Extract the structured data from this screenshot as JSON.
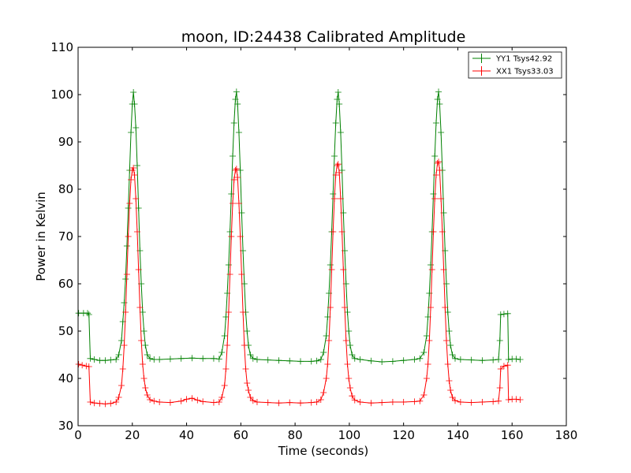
{
  "chart_data": {
    "type": "line",
    "title": "moon, ID:24438 Calibrated Amplitude",
    "xlabel": "Time (seconds)",
    "ylabel": "Power in Kelvin",
    "xlim": [
      0,
      180
    ],
    "ylim": [
      30,
      110
    ],
    "xticks": [
      "0",
      "20",
      "40",
      "60",
      "80",
      "100",
      "120",
      "140",
      "160",
      "180"
    ],
    "yticks": [
      "30",
      "40",
      "50",
      "60",
      "70",
      "80",
      "90",
      "100",
      "110"
    ],
    "grid": false,
    "legend_position": "top-right",
    "marker": "+",
    "series": [
      {
        "name": "YY1 Tsys42.92",
        "color": "#008000",
        "points": [
          [
            0.2,
            53.8
          ],
          [
            2.0,
            53.8
          ],
          [
            3.5,
            53.8
          ],
          [
            4.0,
            53.5
          ],
          [
            4.5,
            44.2
          ],
          [
            6.0,
            44.0
          ],
          [
            8.0,
            43.8
          ],
          [
            10.0,
            43.8
          ],
          [
            12.0,
            43.9
          ],
          [
            14.0,
            44.0
          ],
          [
            15.0,
            45.0
          ],
          [
            16.0,
            48.0
          ],
          [
            16.5,
            52.0
          ],
          [
            17.0,
            56.0
          ],
          [
            17.5,
            61.0
          ],
          [
            18.0,
            68.0
          ],
          [
            18.5,
            76.0
          ],
          [
            19.0,
            84.0
          ],
          [
            19.5,
            92.0
          ],
          [
            20.0,
            98.0
          ],
          [
            20.4,
            100.5
          ],
          [
            20.8,
            98.0
          ],
          [
            21.3,
            93.0
          ],
          [
            21.8,
            85.0
          ],
          [
            22.3,
            76.0
          ],
          [
            22.8,
            67.0
          ],
          [
            23.3,
            60.0
          ],
          [
            23.8,
            54.0
          ],
          [
            24.3,
            50.0
          ],
          [
            24.8,
            47.0
          ],
          [
            25.5,
            45.0
          ],
          [
            26.5,
            44.2
          ],
          [
            28.0,
            44.0
          ],
          [
            30.0,
            44.0
          ],
          [
            34.0,
            44.1
          ],
          [
            38.0,
            44.2
          ],
          [
            42.0,
            44.3
          ],
          [
            46.0,
            44.2
          ],
          [
            50.0,
            44.2
          ],
          [
            52.0,
            44.1
          ],
          [
            53.0,
            45.5
          ],
          [
            54.0,
            49.0
          ],
          [
            54.5,
            53.0
          ],
          [
            55.0,
            58.0
          ],
          [
            55.5,
            64.0
          ],
          [
            56.0,
            71.0
          ],
          [
            56.5,
            79.0
          ],
          [
            57.0,
            87.0
          ],
          [
            57.5,
            94.0
          ],
          [
            58.0,
            99.0
          ],
          [
            58.4,
            100.6
          ],
          [
            58.8,
            98.0
          ],
          [
            59.3,
            92.0
          ],
          [
            59.8,
            84.0
          ],
          [
            60.3,
            75.0
          ],
          [
            60.8,
            67.0
          ],
          [
            61.3,
            60.0
          ],
          [
            61.8,
            54.0
          ],
          [
            62.3,
            50.0
          ],
          [
            62.8,
            47.0
          ],
          [
            63.5,
            45.0
          ],
          [
            64.5,
            44.2
          ],
          [
            66.0,
            44.0
          ],
          [
            70.0,
            43.9
          ],
          [
            74.0,
            43.8
          ],
          [
            78.0,
            43.7
          ],
          [
            82.0,
            43.6
          ],
          [
            86.0,
            43.6
          ],
          [
            88.0,
            43.7
          ],
          [
            89.5,
            44.0
          ],
          [
            90.5,
            45.5
          ],
          [
            91.5,
            49.0
          ],
          [
            92.0,
            53.0
          ],
          [
            92.5,
            58.0
          ],
          [
            93.0,
            64.0
          ],
          [
            93.5,
            71.0
          ],
          [
            94.0,
            79.0
          ],
          [
            94.5,
            87.0
          ],
          [
            95.0,
            94.0
          ],
          [
            95.5,
            99.0
          ],
          [
            95.9,
            100.5
          ],
          [
            96.3,
            98.0
          ],
          [
            96.8,
            92.0
          ],
          [
            97.3,
            84.0
          ],
          [
            97.8,
            75.0
          ],
          [
            98.3,
            67.0
          ],
          [
            98.8,
            60.0
          ],
          [
            99.3,
            54.0
          ],
          [
            99.8,
            50.0
          ],
          [
            100.3,
            47.0
          ],
          [
            101.0,
            45.0
          ],
          [
            102.0,
            44.2
          ],
          [
            104.0,
            44.0
          ],
          [
            108.0,
            43.7
          ],
          [
            112.0,
            43.5
          ],
          [
            116.0,
            43.6
          ],
          [
            120.0,
            43.8
          ],
          [
            124.0,
            44.0
          ],
          [
            126.0,
            44.2
          ],
          [
            127.5,
            45.5
          ],
          [
            128.5,
            49.0
          ],
          [
            129.0,
            53.0
          ],
          [
            129.5,
            58.0
          ],
          [
            130.0,
            64.0
          ],
          [
            130.5,
            71.0
          ],
          [
            131.0,
            79.0
          ],
          [
            131.5,
            87.0
          ],
          [
            132.0,
            94.0
          ],
          [
            132.5,
            99.0
          ],
          [
            132.9,
            100.6
          ],
          [
            133.3,
            98.0
          ],
          [
            133.8,
            92.0
          ],
          [
            134.3,
            84.0
          ],
          [
            134.8,
            75.0
          ],
          [
            135.3,
            67.0
          ],
          [
            135.8,
            60.0
          ],
          [
            136.3,
            54.0
          ],
          [
            136.8,
            50.0
          ],
          [
            137.3,
            47.0
          ],
          [
            138.0,
            45.0
          ],
          [
            139.0,
            44.2
          ],
          [
            141.0,
            44.0
          ],
          [
            145.0,
            43.9
          ],
          [
            149.0,
            43.8
          ],
          [
            153.0,
            43.9
          ],
          [
            155.0,
            44.0
          ],
          [
            155.5,
            48.0
          ],
          [
            155.8,
            53.5
          ],
          [
            157.0,
            53.6
          ],
          [
            158.4,
            53.7
          ],
          [
            158.7,
            44.0
          ],
          [
            160.0,
            44.1
          ],
          [
            161.5,
            44.1
          ],
          [
            163.0,
            44.0
          ]
        ]
      },
      {
        "name": "XX1 Tsys33.03",
        "color": "#ff0000",
        "points": [
          [
            0.2,
            43.0
          ],
          [
            1.5,
            42.8
          ],
          [
            3.0,
            42.6
          ],
          [
            4.0,
            42.5
          ],
          [
            4.5,
            35.0
          ],
          [
            6.0,
            34.8
          ],
          [
            8.0,
            34.7
          ],
          [
            10.0,
            34.6
          ],
          [
            12.0,
            34.7
          ],
          [
            14.0,
            35.0
          ],
          [
            15.0,
            36.0
          ],
          [
            16.0,
            38.5
          ],
          [
            16.5,
            42.0
          ],
          [
            17.0,
            47.0
          ],
          [
            17.5,
            54.0
          ],
          [
            18.0,
            62.0
          ],
          [
            18.5,
            70.0
          ],
          [
            19.0,
            77.0
          ],
          [
            19.5,
            82.0
          ],
          [
            20.0,
            84.0
          ],
          [
            20.4,
            84.5
          ],
          [
            20.8,
            83.0
          ],
          [
            21.3,
            78.0
          ],
          [
            21.8,
            71.0
          ],
          [
            22.3,
            63.0
          ],
          [
            22.8,
            55.0
          ],
          [
            23.3,
            48.0
          ],
          [
            23.8,
            43.0
          ],
          [
            24.3,
            40.0
          ],
          [
            24.8,
            38.0
          ],
          [
            25.5,
            36.5
          ],
          [
            26.5,
            35.5
          ],
          [
            28.0,
            35.2
          ],
          [
            30.0,
            35.0
          ],
          [
            34.0,
            34.9
          ],
          [
            38.0,
            35.2
          ],
          [
            40.0,
            35.6
          ],
          [
            42.0,
            35.8
          ],
          [
            44.0,
            35.4
          ],
          [
            46.0,
            35.1
          ],
          [
            50.0,
            34.9
          ],
          [
            52.0,
            35.0
          ],
          [
            53.0,
            36.0
          ],
          [
            54.0,
            38.5
          ],
          [
            54.5,
            42.0
          ],
          [
            55.0,
            47.0
          ],
          [
            55.5,
            54.0
          ],
          [
            56.0,
            62.0
          ],
          [
            56.5,
            70.0
          ],
          [
            57.0,
            77.0
          ],
          [
            57.5,
            82.0
          ],
          [
            58.0,
            84.0
          ],
          [
            58.4,
            84.3
          ],
          [
            58.8,
            82.5
          ],
          [
            59.3,
            77.0
          ],
          [
            59.8,
            70.0
          ],
          [
            60.3,
            62.0
          ],
          [
            60.8,
            54.0
          ],
          [
            61.3,
            47.0
          ],
          [
            61.8,
            42.0
          ],
          [
            62.3,
            39.0
          ],
          [
            62.8,
            37.5
          ],
          [
            63.5,
            36.0
          ],
          [
            64.5,
            35.3
          ],
          [
            66.0,
            35.0
          ],
          [
            70.0,
            34.9
          ],
          [
            74.0,
            34.8
          ],
          [
            78.0,
            34.9
          ],
          [
            82.0,
            34.8
          ],
          [
            86.0,
            34.9
          ],
          [
            88.0,
            35.0
          ],
          [
            89.5,
            35.5
          ],
          [
            90.5,
            37.0
          ],
          [
            91.5,
            40.0
          ],
          [
            92.0,
            43.0
          ],
          [
            92.5,
            48.0
          ],
          [
            93.0,
            55.0
          ],
          [
            93.5,
            63.0
          ],
          [
            94.0,
            71.0
          ],
          [
            94.5,
            78.0
          ],
          [
            95.0,
            83.0
          ],
          [
            95.5,
            85.0
          ],
          [
            95.9,
            85.3
          ],
          [
            96.3,
            83.5
          ],
          [
            96.8,
            78.0
          ],
          [
            97.3,
            71.0
          ],
          [
            97.8,
            63.0
          ],
          [
            98.3,
            55.0
          ],
          [
            98.8,
            48.0
          ],
          [
            99.3,
            43.0
          ],
          [
            99.8,
            40.0
          ],
          [
            100.3,
            38.0
          ],
          [
            101.0,
            36.3
          ],
          [
            102.0,
            35.4
          ],
          [
            104.0,
            35.0
          ],
          [
            108.0,
            34.8
          ],
          [
            112.0,
            34.9
          ],
          [
            116.0,
            35.0
          ],
          [
            120.0,
            35.0
          ],
          [
            124.0,
            35.1
          ],
          [
            126.0,
            35.2
          ],
          [
            127.5,
            36.5
          ],
          [
            128.5,
            40.0
          ],
          [
            129.0,
            43.0
          ],
          [
            129.5,
            48.0
          ],
          [
            130.0,
            55.0
          ],
          [
            130.5,
            63.0
          ],
          [
            131.0,
            71.0
          ],
          [
            131.5,
            78.0
          ],
          [
            132.0,
            83.0
          ],
          [
            132.5,
            85.5
          ],
          [
            132.9,
            85.8
          ],
          [
            133.3,
            84.0
          ],
          [
            133.8,
            78.0
          ],
          [
            134.3,
            71.0
          ],
          [
            134.8,
            63.0
          ],
          [
            135.3,
            55.0
          ],
          [
            135.8,
            48.0
          ],
          [
            136.3,
            43.0
          ],
          [
            136.8,
            39.5
          ],
          [
            137.3,
            37.5
          ],
          [
            138.0,
            36.0
          ],
          [
            139.0,
            35.3
          ],
          [
            141.0,
            35.0
          ],
          [
            145.0,
            34.9
          ],
          [
            149.0,
            35.0
          ],
          [
            153.0,
            35.1
          ],
          [
            155.0,
            35.2
          ],
          [
            155.5,
            38.0
          ],
          [
            155.8,
            42.0
          ],
          [
            157.0,
            42.6
          ],
          [
            158.4,
            42.8
          ],
          [
            158.7,
            35.5
          ],
          [
            160.0,
            35.6
          ],
          [
            161.5,
            35.6
          ],
          [
            163.0,
            35.5
          ]
        ]
      }
    ]
  }
}
